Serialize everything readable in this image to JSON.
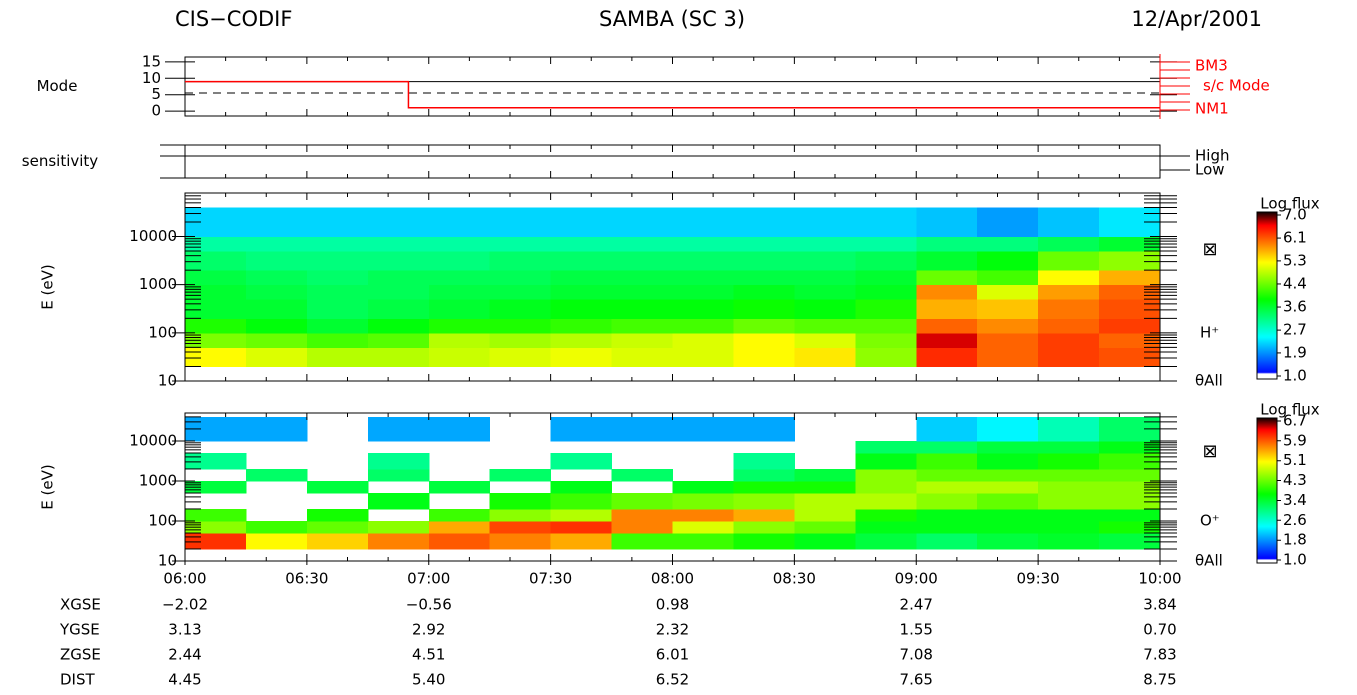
{
  "header": {
    "instrument": "CIS−CODIF",
    "title": "SAMBA (SC 3)",
    "date": "12/Apr/2001"
  },
  "chart_data": [
    {
      "type": "line",
      "ylabel": "Mode",
      "xlim": [
        "06:00",
        "10:00"
      ],
      "ylim": [
        -1.5,
        16.5
      ],
      "yticks": [
        0,
        5,
        10,
        15
      ],
      "x": [
        "06:00",
        "06:55",
        "06:55",
        "10:00"
      ],
      "series": [
        {
          "name": "s/c Mode",
          "color": "#ff0000",
          "values": [
            9,
            9,
            1,
            1
          ]
        }
      ],
      "hlines": [
        {
          "value": 9,
          "style": "solid"
        },
        {
          "value": 5.5,
          "style": "dashed"
        }
      ],
      "annotations": [
        "BM3",
        "NM1"
      ]
    },
    {
      "type": "levels",
      "ylabel": "sensitivity",
      "xlim": [
        "06:00",
        "10:00"
      ],
      "levels": [
        "High",
        "Low"
      ]
    },
    {
      "type": "heatmap",
      "ylabel": "E (eV)",
      "xlim": [
        "06:00",
        "10:00"
      ],
      "log": true,
      "ylim": [
        10,
        80000
      ],
      "yticks": [
        10,
        100,
        1000,
        10000
      ],
      "annotations": [
        "⊠",
        "H⁺",
        "θAll"
      ],
      "time_bins": [
        "06:00",
        "06:15",
        "06:30",
        "06:45",
        "07:00",
        "07:15",
        "07:30",
        "07:45",
        "08:00",
        "08:15",
        "08:30",
        "08:45",
        "09:00",
        "09:15",
        "09:30",
        "09:45",
        "10:00"
      ],
      "energy_bins": [
        20,
        50,
        100,
        200,
        500,
        1000,
        2000,
        5000,
        10000,
        40000
      ],
      "values": [
        [
          5.2,
          5.0,
          4.8,
          4.8,
          4.9,
          5.0,
          5.1,
          5.0,
          5.0,
          5.2,
          5.3,
          4.6,
          6.3,
          6.0,
          6.2,
          6.1
        ],
        [
          4.5,
          4.4,
          4.2,
          4.3,
          4.8,
          4.7,
          4.8,
          4.9,
          5.0,
          5.2,
          5.0,
          4.5,
          6.6,
          6.0,
          6.2,
          6.0
        ],
        [
          4.0,
          3.8,
          3.6,
          3.8,
          4.0,
          4.0,
          4.1,
          4.2,
          4.2,
          4.4,
          4.3,
          4.3,
          6.0,
          5.8,
          6.0,
          6.2
        ],
        [
          3.6,
          3.6,
          3.4,
          3.5,
          3.6,
          3.7,
          3.8,
          3.8,
          3.8,
          3.9,
          3.8,
          4.0,
          5.6,
          5.5,
          5.9,
          6.1
        ],
        [
          3.6,
          3.5,
          3.4,
          3.4,
          3.5,
          3.5,
          3.6,
          3.6,
          3.6,
          3.7,
          3.6,
          3.7,
          5.8,
          5.0,
          5.7,
          6.0
        ],
        [
          3.5,
          3.4,
          3.3,
          3.4,
          3.4,
          3.4,
          3.5,
          3.5,
          3.5,
          3.5,
          3.5,
          3.6,
          4.4,
          4.2,
          5.2,
          5.6
        ],
        [
          3.3,
          3.2,
          3.2,
          3.2,
          3.2,
          3.3,
          3.3,
          3.3,
          3.3,
          3.3,
          3.3,
          3.4,
          3.6,
          3.8,
          4.4,
          4.6
        ],
        [
          3.0,
          3.0,
          3.0,
          3.0,
          3.0,
          3.0,
          3.0,
          3.0,
          3.0,
          3.0,
          3.0,
          3.0,
          3.2,
          3.2,
          3.4,
          3.6
        ],
        [
          2.3,
          2.3,
          2.3,
          2.3,
          2.3,
          2.3,
          2.3,
          2.3,
          2.3,
          2.3,
          2.3,
          2.3,
          2.2,
          2.0,
          2.2,
          2.4
        ]
      ],
      "colorbar": {
        "label": "Log flux",
        "lim": [
          1.0,
          7.0
        ],
        "ticks": [
          {
            "value": 7.0,
            "label": "7.0"
          },
          {
            "value": 6.14,
            "label": "6.1"
          },
          {
            "value": 5.29,
            "label": "5.3"
          },
          {
            "value": 4.43,
            "label": "4.4"
          },
          {
            "value": 3.57,
            "label": "3.6"
          },
          {
            "value": 2.71,
            "label": "2.7"
          },
          {
            "value": 1.86,
            "label": "1.9"
          },
          {
            "value": 1.0,
            "label": "1.0"
          }
        ]
      }
    },
    {
      "type": "heatmap",
      "ylabel": "E (eV)",
      "xlim": [
        "06:00",
        "10:00"
      ],
      "log": true,
      "ylim": [
        10,
        50000
      ],
      "yticks": [
        10,
        100,
        1000,
        10000
      ],
      "xticks": [
        "06:00",
        "06:30",
        "07:00",
        "07:30",
        "08:00",
        "08:30",
        "09:00",
        "09:30",
        "10:00"
      ],
      "annotations": [
        "⊠",
        "O⁺",
        "θAll"
      ],
      "time_bins": [
        "06:00",
        "06:15",
        "06:30",
        "06:45",
        "07:00",
        "07:15",
        "07:30",
        "07:45",
        "08:00",
        "08:15",
        "08:30",
        "08:45",
        "09:00",
        "09:15",
        "09:30",
        "09:45",
        "10:00"
      ],
      "energy_bins": [
        20,
        50,
        100,
        200,
        500,
        1000,
        2000,
        5000,
        10000,
        40000
      ],
      "values": [
        [
          6.0,
          5.0,
          5.2,
          5.6,
          5.8,
          5.6,
          5.4,
          4.0,
          4.0,
          3.8,
          3.6,
          3.4,
          3.2,
          3.4,
          3.5,
          3.4
        ],
        [
          4.4,
          4.0,
          4.2,
          4.4,
          5.4,
          5.9,
          6.0,
          5.6,
          4.8,
          4.4,
          4.2,
          3.6,
          3.6,
          3.6,
          3.6,
          3.8
        ],
        [
          4.0,
          null,
          3.8,
          null,
          4.0,
          4.4,
          4.6,
          5.6,
          5.6,
          5.4,
          4.6,
          3.8,
          3.6,
          3.6,
          3.6,
          3.6
        ],
        [
          null,
          null,
          null,
          3.6,
          null,
          3.8,
          4.0,
          4.2,
          4.3,
          4.4,
          4.6,
          4.6,
          4.4,
          4.2,
          4.4,
          4.4
        ],
        [
          3.4,
          null,
          3.4,
          null,
          3.4,
          null,
          3.6,
          null,
          3.6,
          3.8,
          3.8,
          4.4,
          4.6,
          4.6,
          4.4,
          4.4
        ],
        [
          null,
          3.2,
          null,
          3.2,
          null,
          3.2,
          null,
          3.2,
          null,
          3.2,
          3.4,
          4.4,
          4.2,
          4.2,
          4.2,
          4.2
        ],
        [
          3.0,
          null,
          null,
          3.0,
          null,
          null,
          3.0,
          null,
          null,
          3.0,
          null,
          3.6,
          4.0,
          3.6,
          3.8,
          4.0
        ],
        [
          null,
          null,
          null,
          null,
          null,
          null,
          null,
          null,
          null,
          null,
          null,
          3.2,
          3.2,
          3.4,
          3.4,
          3.6
        ],
        [
          2.0,
          2.0,
          null,
          2.0,
          2.0,
          null,
          2.0,
          2.0,
          2.0,
          2.0,
          null,
          null,
          2.2,
          2.4,
          2.8,
          3.2
        ]
      ],
      "colorbar": {
        "label": "Log flux",
        "lim": [
          1.0,
          6.7
        ],
        "ticks": [
          {
            "value": 6.7,
            "label": "6.7"
          },
          {
            "value": 5.89,
            "label": "5.9"
          },
          {
            "value": 5.07,
            "label": "5.1"
          },
          {
            "value": 4.26,
            "label": "4.3"
          },
          {
            "value": 3.44,
            "label": "3.4"
          },
          {
            "value": 2.63,
            "label": "2.6"
          },
          {
            "value": 1.81,
            "label": "1.8"
          },
          {
            "value": 1.0,
            "label": "1.0"
          }
        ]
      }
    }
  ],
  "ephemeris": {
    "rows": [
      {
        "label": "XGSE",
        "values": [
          "−2.02",
          "−0.56",
          "0.98",
          "2.47",
          "3.84"
        ]
      },
      {
        "label": "YGSE",
        "values": [
          "3.13",
          "2.92",
          "2.32",
          "1.55",
          "0.70"
        ]
      },
      {
        "label": "ZGSE",
        "values": [
          "2.44",
          "4.51",
          "6.01",
          "7.08",
          "7.83"
        ]
      },
      {
        "label": "DIST",
        "values": [
          "4.45",
          "5.40",
          "6.52",
          "7.65",
          "8.75"
        ]
      }
    ]
  }
}
